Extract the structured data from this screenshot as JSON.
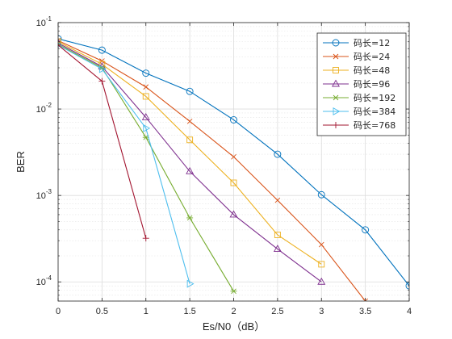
{
  "chart_data": {
    "type": "line",
    "xlabel": "Es/N0（dB）",
    "ylabel": "BER",
    "xlim": [
      0,
      4
    ],
    "x_ticks": [
      0,
      0.5,
      1,
      1.5,
      2,
      2.5,
      3,
      3.5,
      4
    ],
    "x_tick_labels": [
      "0",
      "0.5",
      "1",
      "1.5",
      "2",
      "2.5",
      "3",
      "3.5",
      "4"
    ],
    "y_scale": "log",
    "ylim": [
      6e-05,
      0.1
    ],
    "y_ticks": [
      0.1,
      0.01,
      0.001,
      0.0001
    ],
    "y_tick_labels": [
      {
        "base": "10",
        "exp": "-1"
      },
      {
        "base": "10",
        "exp": "-2"
      },
      {
        "base": "10",
        "exp": "-3"
      },
      {
        "base": "10",
        "exp": "-4"
      }
    ],
    "grid": true,
    "minor_grid": true,
    "legend_position": "top-right",
    "series": [
      {
        "name": "码长=12",
        "color": "#0072BD",
        "marker": "circle",
        "x": [
          0,
          0.5,
          1,
          1.5,
          2,
          2.5,
          3,
          3.5,
          4
        ],
        "y": [
          0.065,
          0.048,
          0.026,
          0.016,
          0.0075,
          0.003,
          0.00102,
          0.0004,
          9e-05
        ]
      },
      {
        "name": "码长=24",
        "color": "#D95319",
        "marker": "x",
        "x": [
          0,
          0.5,
          1,
          1.5,
          2,
          2.5,
          3,
          3.5
        ],
        "y": [
          0.062,
          0.036,
          0.018,
          0.0072,
          0.0028,
          0.00088,
          0.00027,
          6e-05
        ]
      },
      {
        "name": "码长=48",
        "color": "#EDB120",
        "marker": "square",
        "x": [
          0,
          0.5,
          1,
          1.5,
          2,
          2.5,
          3
        ],
        "y": [
          0.06,
          0.033,
          0.014,
          0.0044,
          0.0014,
          0.00035,
          0.00016
        ]
      },
      {
        "name": "码长=96",
        "color": "#7E2F8E",
        "marker": "triangle-up",
        "x": [
          0,
          0.5,
          1,
          1.5,
          2,
          2.5,
          3
        ],
        "y": [
          0.058,
          0.031,
          0.008,
          0.0019,
          0.0006,
          0.00024,
          0.0001
        ]
      },
      {
        "name": "码长=192",
        "color": "#77AC30",
        "marker": "asterisk",
        "x": [
          0,
          0.5,
          1,
          1.5,
          2
        ],
        "y": [
          0.056,
          0.03,
          0.0047,
          0.00055,
          7.8e-05
        ]
      },
      {
        "name": "码长=384",
        "color": "#4DBEEE",
        "marker": "triangle-right",
        "x": [
          0,
          0.5,
          1,
          1.5
        ],
        "y": [
          0.055,
          0.029,
          0.006,
          9.5e-05
        ]
      },
      {
        "name": "码长=768",
        "color": "#A2142F",
        "marker": "plus",
        "x": [
          0,
          0.5,
          1
        ],
        "y": [
          0.055,
          0.021,
          0.00032
        ]
      }
    ]
  }
}
